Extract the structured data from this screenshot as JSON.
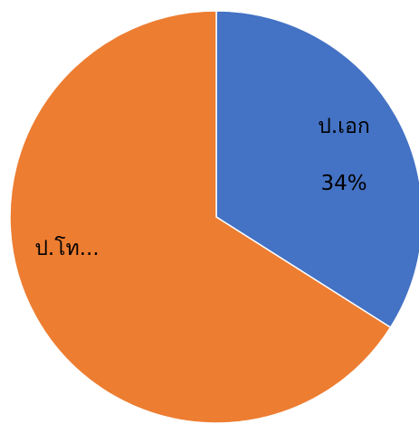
{
  "chart_data": {
    "type": "pie",
    "slices": [
      {
        "label": "ป.เอก",
        "value": 34,
        "value_label": "34%",
        "color": "#4472C4"
      },
      {
        "label": "ป.โท...",
        "value": 66,
        "value_label": "",
        "color": "#ED7D31"
      }
    ],
    "title": "",
    "start_angle_deg": 0,
    "direction": "clockwise",
    "legend": "none"
  }
}
